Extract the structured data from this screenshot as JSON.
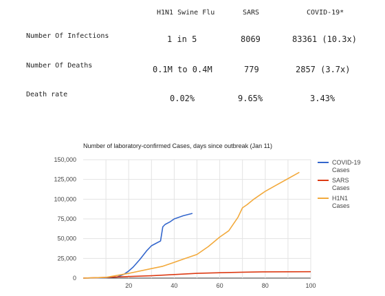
{
  "table": {
    "headers": [
      "H1N1 Swine Flu",
      "SARS",
      "COVID-19*"
    ],
    "rows": [
      {
        "label": "Number Of Infections",
        "values": [
          "1 in 5",
          "8069",
          "83361 (10.3x)"
        ]
      },
      {
        "label": "Number Of Deaths",
        "values": [
          "0.1M to 0.4M",
          "779",
          "2857 (3.7x)"
        ]
      },
      {
        "label": "Death rate",
        "values": [
          "0.02%",
          "9.65%",
          "3.43%"
        ]
      }
    ]
  },
  "chart_data": {
    "type": "line",
    "title": "Number of laboratory-confirmed Cases, days since outbreak (Jan 11)",
    "xlabel": "",
    "ylabel": "",
    "xlim": [
      0,
      100
    ],
    "ylim": [
      0,
      150000
    ],
    "x_ticks": [
      "20",
      "40",
      "60",
      "80",
      "100"
    ],
    "y_ticks": [
      "0",
      "25,000",
      "50,000",
      "75,000",
      "100,000",
      "125,000",
      "150,000"
    ],
    "grid": true,
    "legend_position": "right",
    "series": [
      {
        "name": "COVID-19 Cases",
        "color": "#3366cc",
        "x": [
          0,
          10,
          15,
          18,
          20,
          22,
          25,
          28,
          30,
          32,
          34,
          35,
          36,
          38,
          40,
          44,
          48
        ],
        "y": [
          0,
          500,
          1500,
          5000,
          9000,
          14000,
          24000,
          35000,
          41000,
          44000,
          47000,
          65000,
          68000,
          71000,
          75000,
          79000,
          82000
        ]
      },
      {
        "name": "SARS Cases",
        "color": "#dc3912",
        "x": [
          0,
          10,
          20,
          30,
          40,
          50,
          60,
          70,
          80,
          90,
          100
        ],
        "y": [
          0,
          1000,
          2000,
          3000,
          4500,
          6000,
          6800,
          7500,
          7900,
          8050,
          8100
        ]
      },
      {
        "name": "H1N1 Cases",
        "color": "#f2a93b",
        "x": [
          0,
          10,
          20,
          30,
          35,
          40,
          45,
          50,
          55,
          60,
          64,
          68,
          70,
          72,
          75,
          80,
          85,
          90,
          95
        ],
        "y": [
          0,
          1000,
          6000,
          12000,
          15000,
          20000,
          25000,
          30000,
          40000,
          52000,
          60000,
          77000,
          89000,
          93000,
          100000,
          110000,
          118000,
          126000,
          134000
        ]
      }
    ]
  }
}
